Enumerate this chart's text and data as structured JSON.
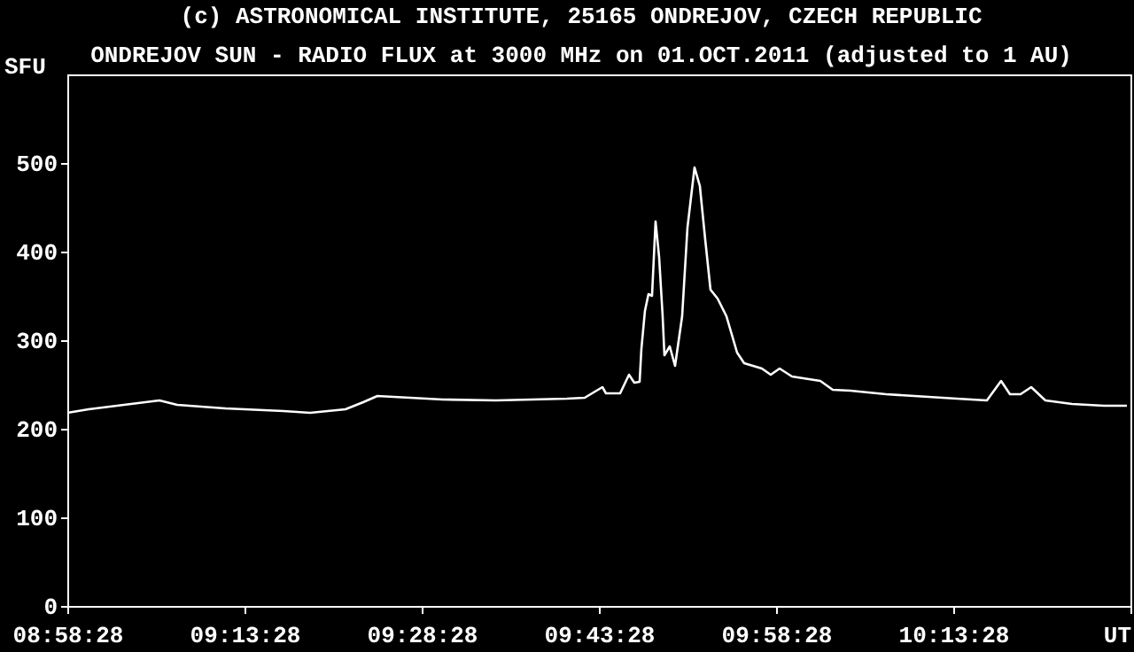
{
  "chart_data": {
    "type": "line",
    "title": "ONDREJOV SUN - RADIO FLUX at 3000 MHz on 01.OCT.2011 (adjusted to 1 AU)",
    "ylabel": "SFU",
    "annotations": [
      "(c) ASTRONOMICAL INSTITUTE, 25165 ONDREJOV, CZECH REPUBLIC"
    ],
    "x": [
      8.9745,
      9.0044,
      9.0544,
      9.1044,
      9.1294,
      9.1969,
      9.2794,
      9.3169,
      9.3669,
      9.3919,
      9.4119,
      9.5044,
      9.5794,
      9.6794,
      9.7044,
      9.7294,
      9.7344,
      9.7544,
      9.7669,
      9.7744,
      9.7819,
      9.7844,
      9.7894,
      9.7944,
      9.7994,
      9.8044,
      9.8094,
      9.8144,
      9.8169,
      9.8244,
      9.8319,
      9.8419,
      9.8494,
      9.8594,
      9.8669,
      9.8744,
      9.8819,
      9.8919,
      9.9044,
      9.9194,
      9.9294,
      9.9544,
      9.9669,
      9.9794,
      9.9969,
      10.0369,
      10.0544,
      10.0794,
      10.1294,
      10.2294,
      10.2719,
      10.2919,
      10.3044,
      10.3194,
      10.3344,
      10.3544,
      10.3919,
      10.4369,
      10.4694
    ],
    "series": [
      {
        "color": "#ffffff",
        "values": [
          218,
          222,
          227,
          232,
          227,
          223,
          220,
          218,
          222,
          230,
          237,
          233,
          232,
          234,
          235,
          247,
          240,
          240,
          261,
          252,
          253,
          290,
          333,
          352,
          350,
          434,
          394,
          327,
          283,
          293,
          271,
          327,
          427,
          495,
          474,
          414,
          357,
          347,
          327,
          286,
          274,
          268,
          261,
          268,
          259,
          254,
          244,
          243,
          239,
          234,
          232,
          254,
          239,
          239,
          247,
          232,
          228,
          226,
          226
        ]
      }
    ],
    "xlim": [
      8.974444,
      10.474444
    ],
    "xticks": [
      {
        "value": 8.974444,
        "label": "08:58:28"
      },
      {
        "value": 9.224444,
        "label": "09:13:28"
      },
      {
        "value": 9.474444,
        "label": "09:28:28"
      },
      {
        "value": 9.724444,
        "label": "09:43:28"
      },
      {
        "value": 9.974444,
        "label": "09:58:28"
      },
      {
        "value": 10.224444,
        "label": "10:13:28"
      },
      {
        "value": 10.474444,
        "label": "UT"
      }
    ],
    "ylim": [
      0,
      600
    ],
    "yticks": [
      0,
      100,
      200,
      300,
      400,
      500
    ],
    "grid": false,
    "marker": "none",
    "line_style": "solid"
  }
}
